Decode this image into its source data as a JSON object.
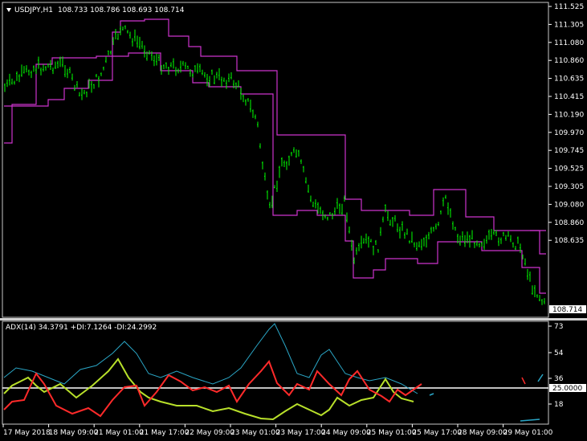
{
  "main": {
    "symbol_label": "USDJPY,H1",
    "ohlc": "108.733 108.786 108.693 108.714",
    "price_ticks": [
      "111.525",
      "111.305",
      "111.080",
      "110.860",
      "110.635",
      "110.415",
      "110.190",
      "109.970",
      "109.745",
      "109.525",
      "109.305",
      "109.080",
      "108.860",
      "108.635"
    ],
    "current_price": "108.714",
    "colors": {
      "candle": "#00ff00",
      "channel": "#cc33cc",
      "background": "#000000",
      "grid_text": "#ffffff"
    }
  },
  "sub": {
    "indicator_label": "ADX(14) 34.3791 +DI:7.1264 -DI:24.2992",
    "ticks": [
      "73",
      "54",
      "36",
      "18"
    ],
    "level_label": "25.0000",
    "colors": {
      "adx": "#2aa6c6",
      "plus_di": "#b8e02a",
      "minus_di": "#ff2a2a",
      "level": "#ffffff"
    }
  },
  "time_ticks": [
    "17 May 2018",
    "18 May 09:00",
    "21 May 01:00",
    "21 May 17:00",
    "22 May 09:00",
    "23 May 01:00",
    "23 May 17:00",
    "24 May 09:00",
    "25 May 01:00",
    "25 May 17:00",
    "28 May 09:00",
    "29 May 01:00"
  ],
  "icons": {
    "dropdown": "triangle-down-icon"
  }
}
